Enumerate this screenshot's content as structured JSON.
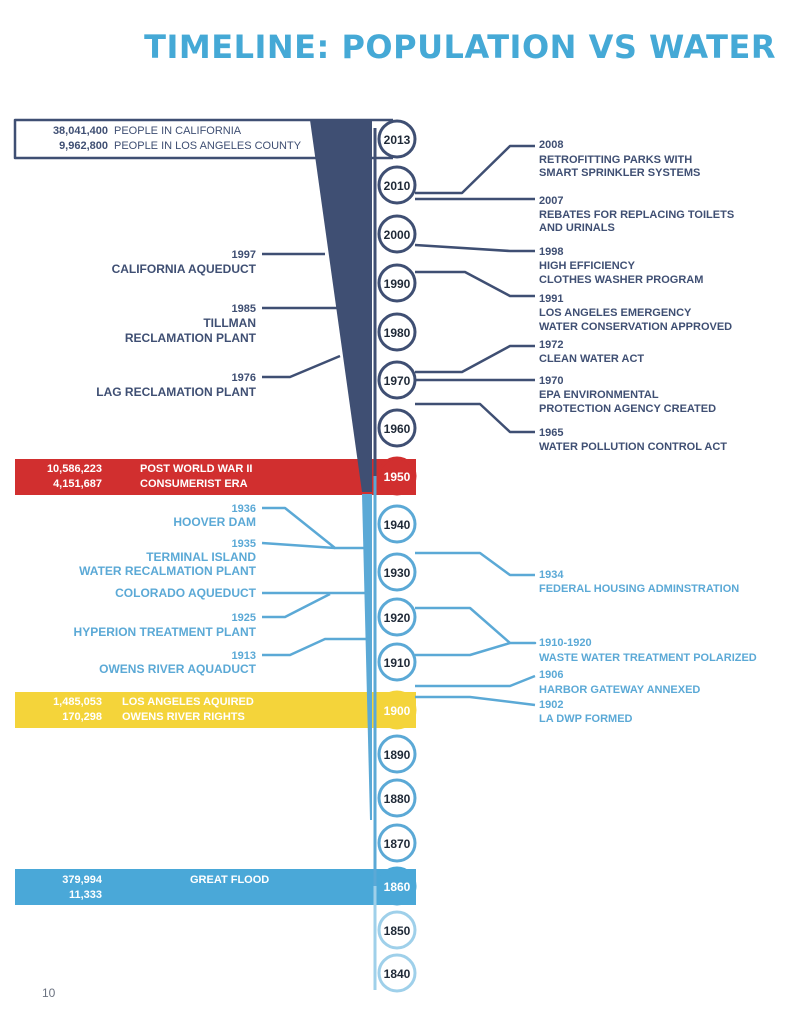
{
  "page": {
    "title": "TIMELINE: POPULATION VS WATER",
    "page_number": "10"
  },
  "colors": {
    "navy": "#3f4f73",
    "blue": "#5ba9d6",
    "light_blue": "#9fd0ea",
    "red": "#d12f2f",
    "yellow": "#f4d43a",
    "flood_blue": "#4aa8d8"
  },
  "years": [
    "2013",
    "2010",
    "2000",
    "1990",
    "1980",
    "1970",
    "1960",
    "1950",
    "1940",
    "1930",
    "1920",
    "1910",
    "1900",
    "1890",
    "1880",
    "1870",
    "1860",
    "1850",
    "1840"
  ],
  "population_bands": [
    {
      "id": "current",
      "year": "2013",
      "values": [
        "38,041,400",
        "9,962,800"
      ],
      "labels": [
        "PEOPLE IN CALIFORNIA",
        "PEOPLE IN LOS ANGELES COUNTY"
      ],
      "style": "outline"
    },
    {
      "id": "post-war",
      "year": "1950",
      "values": [
        "10,586,223",
        "4,151,687"
      ],
      "labels": [
        "POST WORLD WAR II",
        "CONSUMERIST ERA"
      ],
      "style": "red"
    },
    {
      "id": "owens",
      "year": "1900",
      "values": [
        "1,485,053",
        "170,298"
      ],
      "labels": [
        "LOS ANGELES AQUIRED",
        "OWENS RIVER RIGHTS"
      ],
      "style": "yellow"
    },
    {
      "id": "flood",
      "year": "1860",
      "values": [
        "379,994",
        "11,333"
      ],
      "labels": [
        "GREAT FLOOD"
      ],
      "style": "flood"
    }
  ],
  "left_events": [
    {
      "year": "1997",
      "label": "CALIFORNIA AQUEDUCT",
      "tone": "navy"
    },
    {
      "year": "1985",
      "label": "TILLMAN RECLAMATION PLANT",
      "tone": "navy"
    },
    {
      "year": "1976",
      "label": "LAG RECLAMATION PLANT",
      "tone": "navy"
    },
    {
      "year": "1936",
      "label": "HOOVER DAM",
      "tone": "blue"
    },
    {
      "year": "1935",
      "label": "TERMINAL ISLAND WATER RECALMATION PLANT",
      "tone": "blue"
    },
    {
      "year": "",
      "label": "COLORADO AQUEDUCT",
      "tone": "blue"
    },
    {
      "year": "1925",
      "label": "HYPERION TREATMENT PLANT",
      "tone": "blue"
    },
    {
      "year": "1913",
      "label": "OWENS RIVER AQUADUCT",
      "tone": "blue"
    }
  ],
  "right_events": [
    {
      "year": "2008",
      "label": "RETROFITTING PARKS WITH SMART SPRINKLER SYSTEMS",
      "tone": "navy"
    },
    {
      "year": "2007",
      "label": "REBATES FOR REPLACING TOILETS AND URINALS",
      "tone": "navy"
    },
    {
      "year": "1998",
      "label": "HIGH EFFICIENCY CLOTHES WASHER PROGRAM",
      "tone": "navy"
    },
    {
      "year": "1991",
      "label": "LOS ANGELES EMERGENCY WATER CONSERVATION APPROVED",
      "tone": "navy"
    },
    {
      "year": "1972",
      "label": "CLEAN WATER ACT",
      "tone": "navy"
    },
    {
      "year": "1970",
      "label": "EPA ENVIRONMENTAL PROTECTION AGENCY CREATED",
      "tone": "navy"
    },
    {
      "year": "1965",
      "label": "WATER POLLUTION CONTROL ACT",
      "tone": "navy"
    },
    {
      "year": "1934",
      "label": "FEDERAL HOUSING ADMINSTRATION",
      "tone": "blue"
    },
    {
      "year": "1910-1920",
      "label": "WASTE WATER TREATMENT POLARIZED",
      "tone": "blue"
    },
    {
      "year": "1906",
      "label": "HARBOR GATEWAY ANNEXED",
      "tone": "blue"
    },
    {
      "year": "1902",
      "label": "LA DWP FORMED",
      "tone": "blue"
    }
  ]
}
